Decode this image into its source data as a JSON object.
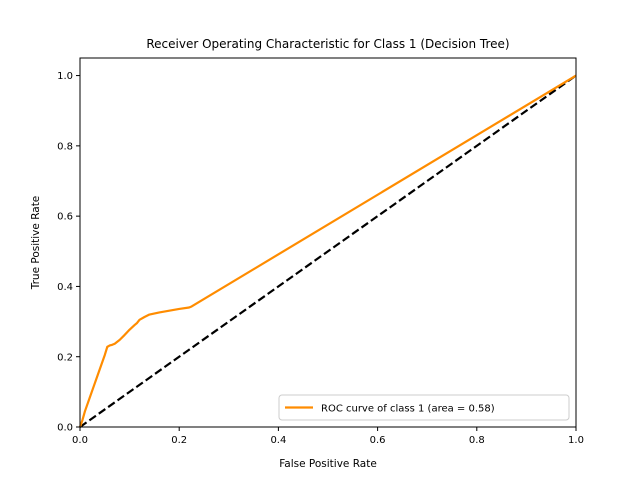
{
  "chart_data": {
    "type": "line",
    "title": "Receiver Operating Characteristic for Class 1 (Decision Tree)",
    "xlabel": "False Positive Rate",
    "ylabel": "True Positive Rate",
    "xlim": [
      0.0,
      1.0
    ],
    "ylim": [
      0.0,
      1.05
    ],
    "x_ticks": [
      0.0,
      0.2,
      0.4,
      0.6,
      0.8,
      1.0
    ],
    "x_tick_labels": [
      "0.0",
      "0.2",
      "0.4",
      "0.6",
      "0.8",
      "1.0"
    ],
    "y_ticks": [
      0.0,
      0.2,
      0.4,
      0.6,
      0.8,
      1.0
    ],
    "y_tick_labels": [
      "0.0",
      "0.2",
      "0.4",
      "0.6",
      "0.8",
      "1.0"
    ],
    "grid": false,
    "legend_position": "lower-right",
    "series": [
      {
        "name": "ROC curve of class 1 (area = 0.58)",
        "color": "#ff8c00",
        "style": "solid",
        "x": [
          0.0,
          0.005,
          0.01,
          0.02,
          0.03,
          0.04,
          0.05,
          0.055,
          0.06,
          0.065,
          0.07,
          0.08,
          0.09,
          0.1,
          0.11,
          0.115,
          0.12,
          0.13,
          0.14,
          0.16,
          0.18,
          0.2,
          0.22,
          0.225,
          1.0
        ],
        "y": [
          0.0,
          0.02,
          0.045,
          0.085,
          0.125,
          0.165,
          0.205,
          0.228,
          0.232,
          0.234,
          0.237,
          0.248,
          0.262,
          0.277,
          0.29,
          0.296,
          0.305,
          0.313,
          0.32,
          0.326,
          0.331,
          0.336,
          0.34,
          0.343,
          1.0
        ]
      },
      {
        "name": "",
        "color": "#000000",
        "style": "dashed",
        "x": [
          0.0,
          1.0
        ],
        "y": [
          0.0,
          1.0
        ]
      }
    ]
  }
}
